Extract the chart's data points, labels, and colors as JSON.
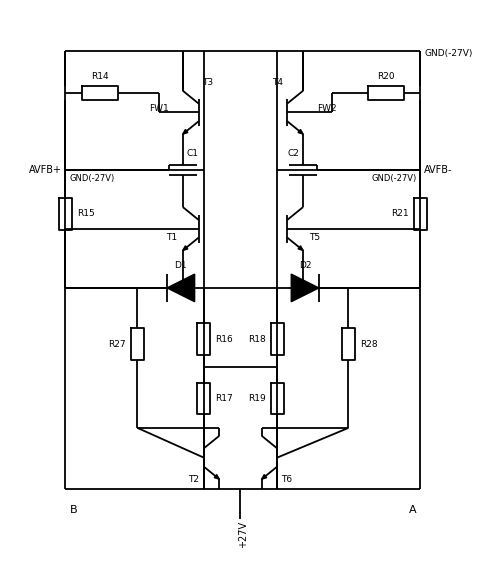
{
  "bg_color": "#ffffff",
  "line_color": "#000000",
  "figsize": [
    4.85,
    5.64
  ],
  "dpi": 100,
  "labels": {
    "GND_top": "GND(-27V)",
    "GND_left": "GND(-27V)",
    "GND_right": "GND(-27V)",
    "AVFB_plus": "AVFB+",
    "AVFB_minus": "AVFB-",
    "B": "B",
    "A": "A",
    "VCC": "+27V",
    "R14": "R14",
    "R15": "R15",
    "R20": "R20",
    "R21": "R21",
    "R27": "R27",
    "R16": "R16",
    "R17": "R17",
    "R18": "R18",
    "R19": "R19",
    "R28": "R28",
    "T1": "T1",
    "T2": "T2",
    "T3": "T3",
    "T4": "T4",
    "T5": "T5",
    "T6": "T6",
    "C1": "C1",
    "C2": "C2",
    "D1": "D1",
    "D2": "D2",
    "FW1": "FW1",
    "FW2": "FW2"
  }
}
